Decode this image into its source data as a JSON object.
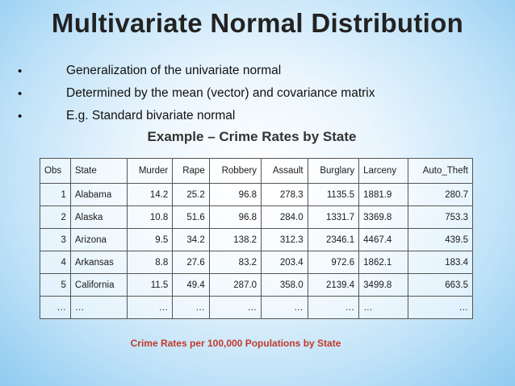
{
  "title": "Multivariate Normal Distribution",
  "bullets": [
    "Generalization of the univariate normal",
    "Determined by the mean (vector) and covariance matrix",
    "E.g. Standard bivariate normal"
  ],
  "subtitle": "Example – Crime Rates by State",
  "table": {
    "headers": [
      "Obs",
      "State",
      "Murder",
      "Rape",
      "Robbery",
      "Assault",
      "Burglary",
      "Larceny",
      "Auto_Theft"
    ],
    "rows": [
      [
        "1",
        "Alabama",
        "14.2",
        "25.2",
        "96.8",
        "278.3",
        "1135.5",
        "1881.9",
        "280.7"
      ],
      [
        "2",
        "Alaska",
        "10.8",
        "51.6",
        "96.8",
        "284.0",
        "1331.7",
        "3369.8",
        "753.3"
      ],
      [
        "3",
        "Arizona",
        "9.5",
        "34.2",
        "138.2",
        "312.3",
        "2346.1",
        "4467.4",
        "439.5"
      ],
      [
        "4",
        "Arkansas",
        "8.8",
        "27.6",
        "83.2",
        "203.4",
        "972.6",
        "1862.1",
        "183.4"
      ],
      [
        "5",
        "California",
        "11.5",
        "49.4",
        "287.0",
        "358.0",
        "2139.4",
        "3499.8",
        "663.5"
      ],
      [
        "…",
        "…",
        "…",
        "…",
        "…",
        "…",
        "…",
        "…",
        "…"
      ]
    ]
  },
  "caption": "Crime Rates per 100,000 Populations by State"
}
